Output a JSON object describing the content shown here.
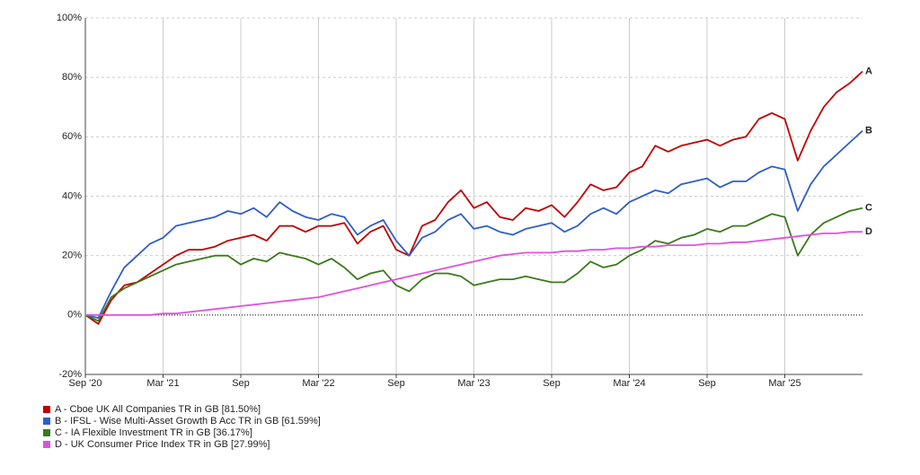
{
  "chart_data": {
    "type": "line",
    "x": [
      "2020-09",
      "2020-10",
      "2020-11",
      "2020-12",
      "2021-01",
      "2021-02",
      "2021-03",
      "2021-04",
      "2021-05",
      "2021-06",
      "2021-07",
      "2021-08",
      "2021-09",
      "2021-10",
      "2021-11",
      "2021-12",
      "2022-01",
      "2022-02",
      "2022-03",
      "2022-04",
      "2022-05",
      "2022-06",
      "2022-07",
      "2022-08",
      "2022-09",
      "2022-10",
      "2022-11",
      "2022-12",
      "2023-01",
      "2023-02",
      "2023-03",
      "2023-04",
      "2023-05",
      "2023-06",
      "2023-07",
      "2023-08",
      "2023-09",
      "2023-10",
      "2023-11",
      "2023-12",
      "2024-01",
      "2024-02",
      "2024-03",
      "2024-04",
      "2024-05",
      "2024-06",
      "2024-07",
      "2024-08",
      "2024-09",
      "2024-10",
      "2024-11",
      "2024-12",
      "2025-01",
      "2025-02",
      "2025-03",
      "2025-04",
      "2025-05",
      "2025-06",
      "2025-07",
      "2025-08",
      "2025-09"
    ],
    "series": [
      {
        "name": "A - Cboe UK All Companies TR in GB [81.50%]",
        "end_label": "A",
        "color": "#c00000",
        "values": [
          0,
          -3,
          5,
          10,
          11,
          14,
          17,
          20,
          22,
          22,
          23,
          25,
          26,
          27,
          25,
          30,
          30,
          28,
          30,
          30,
          31,
          24,
          28,
          30,
          22,
          20,
          30,
          32,
          38,
          42,
          36,
          38,
          33,
          32,
          36,
          35,
          37,
          33,
          38,
          44,
          42,
          43,
          48,
          50,
          57,
          55,
          57,
          58,
          59,
          57,
          59,
          60,
          66,
          68,
          66,
          52,
          62,
          70,
          75,
          78,
          82
        ]
      },
      {
        "name": "B - IFSL - Wise Multi-Asset Growth B Acc TR in GB [61.59%]",
        "end_label": "B",
        "color": "#2f5fc4",
        "values": [
          0,
          -1,
          8,
          16,
          20,
          24,
          26,
          30,
          31,
          32,
          33,
          35,
          34,
          36,
          33,
          38,
          35,
          33,
          32,
          34,
          33,
          27,
          30,
          32,
          25,
          20,
          26,
          28,
          32,
          34,
          29,
          30,
          28,
          27,
          29,
          30,
          31,
          28,
          30,
          34,
          36,
          34,
          38,
          40,
          42,
          41,
          44,
          45,
          46,
          43,
          45,
          45,
          48,
          50,
          49,
          35,
          44,
          50,
          54,
          58,
          62
        ]
      },
      {
        "name": "C - IA Flexible Investment TR in GB [36.17%]",
        "end_label": "C",
        "color": "#3a7a1a",
        "values": [
          0,
          -2,
          6,
          9,
          11,
          13,
          15,
          17,
          18,
          19,
          20,
          20,
          17,
          19,
          18,
          21,
          20,
          19,
          17,
          19,
          16,
          12,
          14,
          15,
          10,
          8,
          12,
          14,
          14,
          13,
          10,
          11,
          12,
          12,
          13,
          12,
          11,
          11,
          14,
          18,
          16,
          17,
          20,
          22,
          25,
          24,
          26,
          27,
          29,
          28,
          30,
          30,
          32,
          34,
          33,
          20,
          27,
          31,
          33,
          35,
          36
        ]
      },
      {
        "name": "D - UK Consumer Price Index TR in GB [27.99%]",
        "end_label": "D",
        "color": "#e050e0",
        "values": [
          0,
          0,
          0,
          0,
          0,
          0,
          0.5,
          0.5,
          1,
          1.5,
          2,
          2.5,
          3,
          3.5,
          4,
          4.5,
          5,
          5.5,
          6,
          7,
          8,
          9,
          10,
          11,
          12,
          13,
          14,
          15,
          16,
          17,
          18,
          19,
          20,
          20.5,
          21,
          21,
          21,
          21.5,
          21.5,
          22,
          22,
          22.5,
          22.5,
          23,
          23,
          23.5,
          23.5,
          23.5,
          24,
          24,
          24.5,
          24.5,
          25,
          25.5,
          26,
          26.5,
          27,
          27.5,
          27.5,
          28,
          28
        ]
      }
    ],
    "ylim": [
      -20,
      100
    ],
    "yticks": [
      {
        "value": -20,
        "label": "-20%"
      },
      {
        "value": 0,
        "label": "0%"
      },
      {
        "value": 20,
        "label": "20%"
      },
      {
        "value": 40,
        "label": "40%"
      },
      {
        "value": 60,
        "label": "60%"
      },
      {
        "value": 80,
        "label": "80%"
      },
      {
        "value": 100,
        "label": "100%"
      }
    ],
    "xticks": [
      {
        "value": "2020-09",
        "label": "Sep '20"
      },
      {
        "value": "2021-03",
        "label": "Mar '21"
      },
      {
        "value": "2021-09",
        "label": "Sep"
      },
      {
        "value": "2022-03",
        "label": "Mar '22"
      },
      {
        "value": "2022-09",
        "label": "Sep"
      },
      {
        "value": "2023-03",
        "label": "Mar '23"
      },
      {
        "value": "2023-09",
        "label": "Sep"
      },
      {
        "value": "2024-03",
        "label": "Mar '24"
      },
      {
        "value": "2024-09",
        "label": "Sep"
      },
      {
        "value": "2025-03",
        "label": "Mar '25"
      }
    ],
    "grid": true
  }
}
